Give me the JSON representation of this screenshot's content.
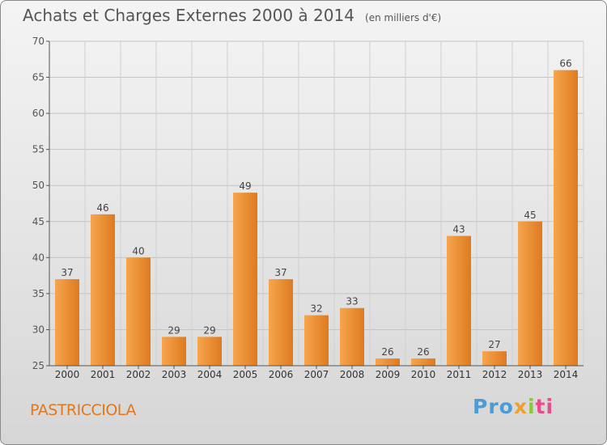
{
  "header": {
    "title": "Achats et Charges Externes 2000 à 2014",
    "unit": "(en milliers d'€)"
  },
  "footer": {
    "commune": "PASTRICCIOLA",
    "logo_icon": "proxiti-logo"
  },
  "colors": {
    "bar_light": "#f6a64e",
    "bar_dark": "#de7a1f",
    "commune_text": "#e0781e"
  },
  "chart_data": {
    "type": "bar",
    "title": "Achats et Charges Externes 2000 à 2014",
    "subtitle": "(en milliers d'€)",
    "xlabel": "",
    "ylabel": "",
    "categories": [
      "2000",
      "2001",
      "2002",
      "2003",
      "2004",
      "2005",
      "2006",
      "2007",
      "2008",
      "2009",
      "2010",
      "2011",
      "2012",
      "2013",
      "2014"
    ],
    "values": [
      37,
      46,
      40,
      29,
      29,
      49,
      37,
      32,
      33,
      26,
      26,
      43,
      27,
      45,
      66
    ],
    "ylim": [
      25,
      70
    ],
    "yticks": [
      25,
      30,
      35,
      40,
      45,
      50,
      55,
      60,
      65,
      70
    ],
    "grid": true,
    "legend": "none"
  }
}
